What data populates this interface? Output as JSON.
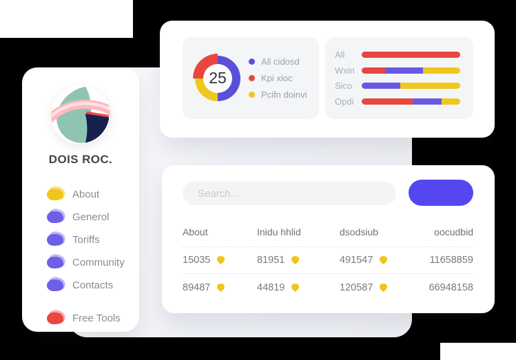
{
  "sidebar": {
    "title": "DOIS ROC.",
    "items": [
      {
        "id": "about",
        "label": "About",
        "color": "#f2c71c",
        "separated": false
      },
      {
        "id": "generol",
        "label": "Generol",
        "color": "#6f5fe8",
        "separated": false
      },
      {
        "id": "toriffs",
        "label": "Toriffs",
        "color": "#6f5fe8",
        "separated": false
      },
      {
        "id": "community",
        "label": "Community",
        "color": "#6f5fe8",
        "separated": false
      },
      {
        "id": "contacts",
        "label": "Contacts",
        "color": "#6f5fe8",
        "separated": false
      },
      {
        "id": "free-tools",
        "label": "Free Tools",
        "color": "#e8463e",
        "separated": true
      }
    ]
  },
  "stats_card": {
    "donut": {
      "center_value": "25",
      "highlight_color": "#e8463e",
      "ring": [
        {
          "color": "#5a4fd9",
          "pct": 50
        },
        {
          "color": "#f0c71d",
          "pct": 25
        },
        {
          "color": "#e8463e",
          "pct": 25
        }
      ],
      "legend": [
        {
          "label": "All cidosd",
          "color": "#5a4fd9"
        },
        {
          "label": "Kpi xioc",
          "color": "#e8463e"
        },
        {
          "label": "Pcifn doinvi",
          "color": "#f0c71d"
        }
      ]
    },
    "bars": {
      "rows": [
        {
          "label": "All",
          "segments": [
            {
              "color": "#e8463e",
              "pct": 100
            }
          ]
        },
        {
          "label": "Wxin",
          "segments": [
            {
              "color": "#e8463e",
              "pct": 24
            },
            {
              "color": "#675ae1",
              "pct": 38
            },
            {
              "color": "#f0c71d",
              "pct": 38
            }
          ]
        },
        {
          "label": "Sico",
          "segments": [
            {
              "color": "#675ae1",
              "pct": 39
            },
            {
              "color": "#f0c71d",
              "pct": 61
            }
          ]
        },
        {
          "label": "Opdi",
          "segments": [
            {
              "color": "#e8463e",
              "pct": 52
            },
            {
              "color": "#675ae1",
              "pct": 29
            },
            {
              "color": "#f0c71d",
              "pct": 19
            }
          ]
        }
      ]
    }
  },
  "panel": {
    "search": {
      "placeholder": "Search..."
    },
    "table": {
      "headers": [
        "About",
        "Inidu hhlid",
        "dsodsiub",
        "oocudbid"
      ],
      "rows": [
        {
          "cells": [
            {
              "value": "15035",
              "badge": true
            },
            {
              "value": "81951",
              "badge": true
            },
            {
              "value": "491547",
              "badge": true
            },
            {
              "value": "11658859",
              "badge": false
            }
          ]
        },
        {
          "cells": [
            {
              "value": "89487",
              "badge": true
            },
            {
              "value": "44819",
              "badge": true
            },
            {
              "value": "120587",
              "badge": true
            },
            {
              "value": "66948158",
              "badge": false
            }
          ]
        }
      ]
    }
  },
  "colors": {
    "accent_button": "#5447f0",
    "red": "#e8463e",
    "blue": "#675ae1",
    "yellow": "#f0c71d",
    "badge": "#f0c419",
    "logo_teal": "#8fc4b2",
    "logo_navy": "#18214d",
    "logo_pink": "#ffb8c0"
  }
}
